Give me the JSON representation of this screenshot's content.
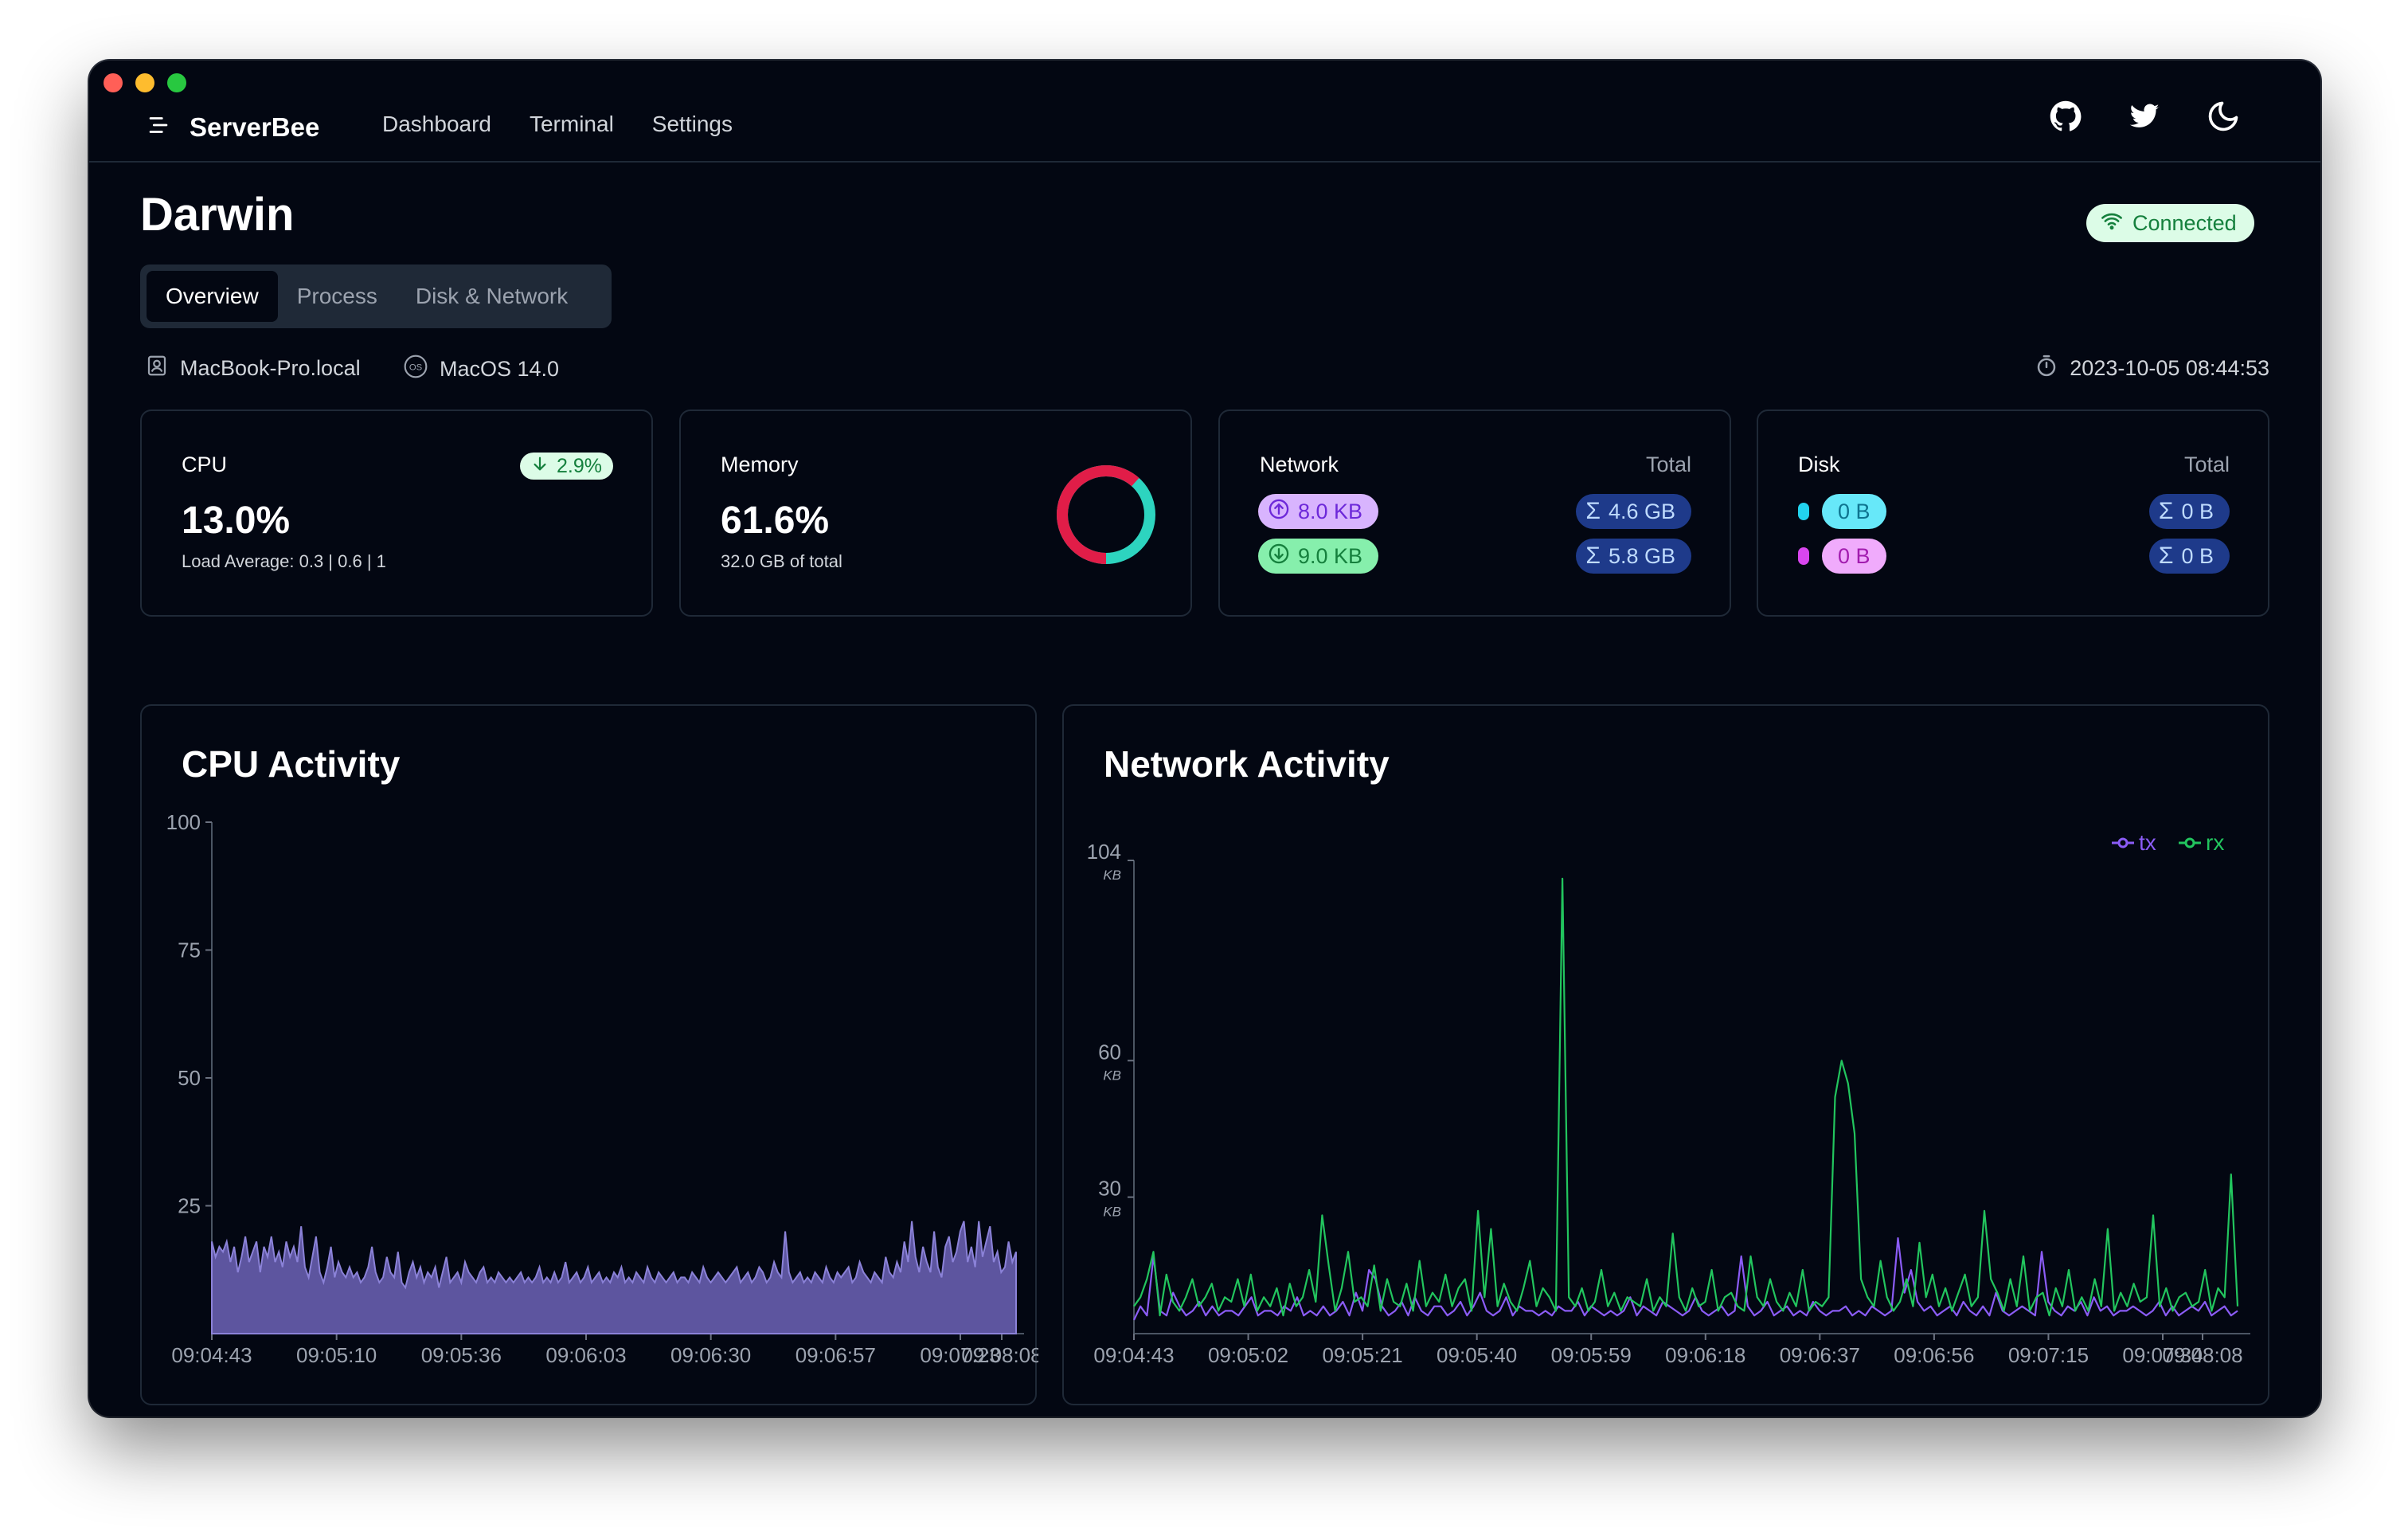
{
  "app": {
    "brand": "ServerBee",
    "nav": [
      "Dashboard",
      "Terminal",
      "Settings"
    ]
  },
  "page": {
    "title": "Darwin",
    "status": "Connected",
    "tabs": [
      "Overview",
      "Process",
      "Disk & Network"
    ],
    "active_tab": "Overview",
    "hostname": "MacBook-Pro.local",
    "os": "MacOS 14.0",
    "timestamp": "2023-10-05 08:44:53"
  },
  "cards": {
    "cpu": {
      "label": "CPU",
      "badge": "2.9%",
      "value": "13.0%",
      "load": "Load Average: 0.3 | 0.6 | 1"
    },
    "memory": {
      "label": "Memory",
      "value": "61.6%",
      "total": "32.0 GB of total",
      "used_fraction": 0.616
    },
    "network": {
      "label": "Network",
      "total_label": "Total",
      "tx": "8.0 KB",
      "rx": "9.0 KB",
      "tx_total": "4.6 GB",
      "rx_total": "5.8 GB"
    },
    "disk": {
      "label": "Disk",
      "total_label": "Total",
      "read": "0 B",
      "write": "0 B",
      "read_total": "0 B",
      "write_total": "0 B"
    }
  },
  "colors": {
    "accent_green": "#22c55e",
    "tx_line": "#8b5cf6",
    "rx_line": "#22c55e",
    "cpu_area": "#6d63b8",
    "mem_used": "#e11d48",
    "mem_free": "#2dd4bf"
  },
  "icons": [
    "menu-icon",
    "github-icon",
    "twitter-icon",
    "moon-icon",
    "wifi-icon",
    "user-icon",
    "os-icon",
    "timer-icon",
    "arrow-down-icon",
    "arrow-up-circle-icon",
    "arrow-down-circle-icon",
    "sigma-icon"
  ],
  "chart_data": [
    {
      "type": "area",
      "title": "CPU Activity",
      "ylim": [
        0,
        100
      ],
      "yticks": [
        25,
        50,
        75,
        100
      ],
      "xticks": [
        "09:04:43",
        "09:05:10",
        "09:05:36",
        "09:06:03",
        "09:06:30",
        "09:06:57",
        "09:07:23",
        "09:08:08"
      ],
      "series": [
        {
          "values": [
            18,
            15,
            17,
            16,
            18,
            14,
            17,
            12,
            15,
            19,
            14,
            16,
            18,
            12,
            17,
            15,
            19,
            14,
            16,
            13,
            18,
            15,
            17,
            14,
            21,
            13,
            11,
            15,
            19,
            12,
            10,
            13,
            17,
            11,
            14,
            12,
            11,
            13,
            11,
            12,
            10,
            11,
            13,
            17,
            12,
            10,
            11,
            15,
            12,
            11,
            16,
            10,
            9,
            12,
            14,
            11,
            13,
            10,
            12,
            11,
            13,
            9,
            12,
            15,
            10,
            11,
            12,
            10,
            14,
            12,
            11,
            10,
            12,
            13,
            10,
            11,
            10,
            12,
            11,
            10,
            11,
            10,
            11,
            12,
            10,
            11,
            10,
            11,
            13,
            10,
            11,
            10,
            12,
            10,
            11,
            14,
            10,
            11,
            12,
            10,
            11,
            13,
            10,
            11,
            12,
            10,
            11,
            10,
            12,
            11,
            13,
            10,
            11,
            10,
            12,
            11,
            10,
            13,
            11,
            10,
            12,
            11,
            10,
            11,
            12,
            10,
            11,
            11,
            10,
            12,
            11,
            10,
            13,
            11,
            10,
            11,
            12,
            11,
            10,
            11,
            12,
            13,
            10,
            11,
            12,
            10,
            11,
            13,
            12,
            10,
            11,
            14,
            12,
            11,
            20,
            12,
            10,
            11,
            12,
            10,
            11,
            10,
            12,
            11,
            10,
            13,
            11,
            10,
            12,
            11,
            12,
            13,
            10,
            11,
            14,
            12,
            11,
            10,
            12,
            11,
            10,
            15,
            12,
            11,
            14,
            12,
            18,
            14,
            22,
            15,
            12,
            17,
            14,
            12,
            20,
            13,
            11,
            17,
            19,
            14,
            16,
            20,
            22,
            14,
            17,
            13,
            22,
            15,
            18,
            21,
            14,
            16,
            12,
            13,
            18,
            14,
            16
          ]
        }
      ]
    },
    {
      "type": "line",
      "title": "Network Activity",
      "ylabel_unit": "KB",
      "ylim": [
        0,
        104
      ],
      "yticks": [
        30,
        60,
        104
      ],
      "xticks": [
        "09:04:43",
        "09:05:02",
        "09:05:21",
        "09:05:40",
        "09:05:59",
        "09:06:18",
        "09:06:37",
        "09:06:56",
        "09:07:15",
        "09:07:34",
        "09:08:08"
      ],
      "legend": "top-right",
      "series": [
        {
          "name": "tx",
          "values": [
            3,
            6,
            4,
            17,
            5,
            4,
            9,
            6,
            4,
            5,
            7,
            4,
            6,
            4,
            5,
            5,
            4,
            6,
            8,
            4,
            5,
            5,
            4,
            6,
            5,
            8,
            4,
            5,
            4,
            6,
            4,
            5,
            7,
            4,
            9,
            5,
            14,
            12,
            6,
            4,
            5,
            7,
            4,
            8,
            5,
            4,
            6,
            6,
            4,
            5,
            7,
            4,
            6,
            9,
            5,
            4,
            5,
            8,
            4,
            6,
            5,
            5,
            4,
            5,
            4,
            6,
            5,
            5,
            7,
            4,
            6,
            5,
            4,
            5,
            4,
            5,
            8,
            4,
            6,
            5,
            4,
            7,
            6,
            5,
            4,
            5,
            8,
            5,
            4,
            5,
            6,
            4,
            5,
            17,
            6,
            4,
            5,
            7,
            4,
            5,
            6,
            4,
            5,
            4,
            7,
            5,
            4,
            5,
            5,
            6,
            4,
            5,
            4,
            6,
            5,
            4,
            5,
            21,
            9,
            14,
            7,
            5,
            6,
            4,
            5,
            6,
            4,
            7,
            5,
            4,
            6,
            4,
            9,
            5,
            4,
            5,
            6,
            5,
            4,
            18,
            7,
            5,
            4,
            6,
            5,
            7,
            4,
            8,
            5,
            6,
            4,
            5,
            5,
            6,
            5,
            4,
            5,
            7,
            4,
            6,
            4,
            5,
            6,
            5,
            7,
            4,
            5,
            6,
            4,
            5
          ]
        },
        {
          "name": "rx",
          "values": [
            6,
            8,
            12,
            18,
            4,
            13,
            7,
            5,
            8,
            12,
            6,
            8,
            11,
            5,
            8,
            7,
            12,
            6,
            13,
            5,
            8,
            6,
            10,
            4,
            11,
            6,
            8,
            14,
            7,
            26,
            15,
            5,
            10,
            18,
            7,
            8,
            6,
            15,
            5,
            12,
            7,
            6,
            11,
            5,
            16,
            6,
            9,
            7,
            13,
            6,
            10,
            12,
            5,
            27,
            8,
            23,
            6,
            11,
            7,
            5,
            10,
            16,
            6,
            10,
            8,
            5,
            100,
            8,
            6,
            10,
            5,
            7,
            14,
            6,
            9,
            5,
            8,
            7,
            6,
            12,
            5,
            8,
            6,
            22,
            8,
            5,
            10,
            6,
            7,
            14,
            5,
            8,
            9,
            6,
            5,
            17,
            8,
            6,
            12,
            7,
            5,
            9,
            6,
            14,
            5,
            7,
            6,
            8,
            52,
            60,
            55,
            44,
            12,
            8,
            6,
            16,
            8,
            5,
            7,
            12,
            6,
            20,
            8,
            13,
            6,
            10,
            5,
            9,
            13,
            6,
            8,
            27,
            12,
            9,
            5,
            12,
            6,
            17,
            5,
            8,
            9,
            4,
            10,
            6,
            14,
            5,
            8,
            5,
            12,
            6,
            23,
            5,
            9,
            6,
            11,
            7,
            8,
            26,
            6,
            10,
            5,
            8,
            9,
            6,
            7,
            14,
            5,
            10,
            8,
            35,
            6
          ]
        }
      ]
    }
  ]
}
